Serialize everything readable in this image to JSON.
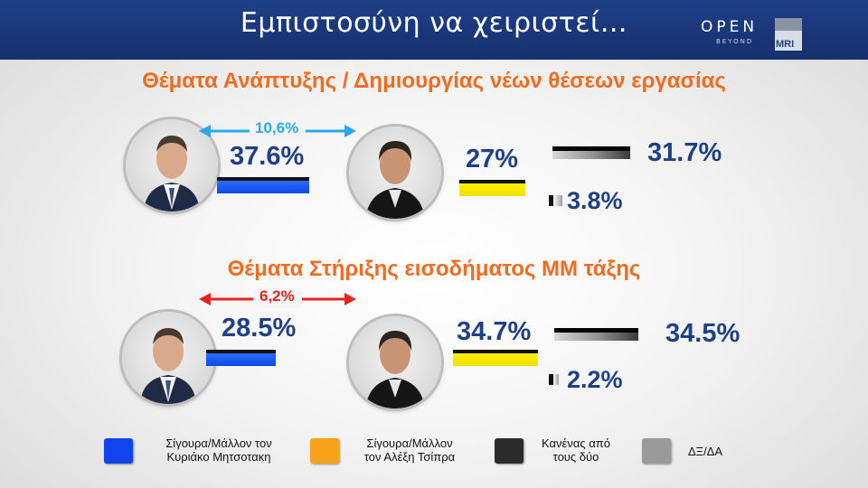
{
  "header": {
    "title": "Εμπιστοσύνη να χειριστεί…",
    "logo_main": "OPEN",
    "logo_sub": "BEYOND",
    "logo_right": "MRI"
  },
  "chart_data": [
    {
      "type": "bar",
      "title": "Θέματα Ανάπτυξης / Δημιουργίας νέων  θέσεων εργασίας",
      "categories": [
        "Σίγουρα/Μάλλον τον Κυριάκο Μητσοτακη",
        "Σίγουρα/Μάλλον τον Αλέξη Τσίπρα",
        "Κανένας από τους δύο",
        "ΔΞ/ΔΑ"
      ],
      "values": [
        37.6,
        27,
        31.7,
        3.8
      ],
      "value_labels": [
        "37.6%",
        "27%",
        "31.7%",
        "3.8%"
      ],
      "difference_label": "10,6%",
      "colors": [
        "#0b48e6",
        "#f0e000",
        "#2a2a2a",
        "#9b9b9b"
      ]
    },
    {
      "type": "bar",
      "title": "Θέματα Στήριξης εισοδήματος ΜΜ τάξης",
      "categories": [
        "Σίγουρα/Μάλλον τον Κυριάκο Μητσοτακη",
        "Σίγουρα/Μάλλον τον Αλέξη Τσίπρα",
        "Κανένας από τους δύο",
        "ΔΞ/ΔΑ"
      ],
      "values": [
        28.5,
        34.7,
        34.5,
        2.2
      ],
      "value_labels": [
        "28.5%",
        "34.7%",
        "34.5%",
        "2.2%"
      ],
      "difference_label": "6,2%",
      "colors": [
        "#0b48e6",
        "#f0e000",
        "#2a2a2a",
        "#9b9b9b"
      ]
    }
  ],
  "arrow_colors": [
    "#2aa7ee",
    "#e8231c"
  ],
  "legend": [
    {
      "line1": "Σίγουρα/Μάλλον τον",
      "line2": "Κυριάκο Μητσοτακη",
      "color": "#1144ee"
    },
    {
      "line1": "Σίγουρα/Μάλλον",
      "line2": "τον Αλέξη Τσίπρα",
      "color": "#f7a21b"
    },
    {
      "line1": "Κανένας από",
      "line2": "τους δύο",
      "color": "#2b2b2b"
    },
    {
      "line1": "ΔΞ/ΔΑ",
      "line2": "",
      "color": "#9a9a9a"
    }
  ]
}
